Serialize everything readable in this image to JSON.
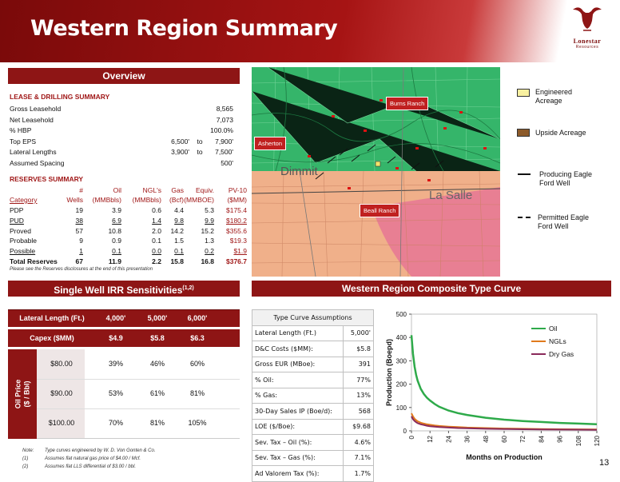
{
  "header": {
    "title": "Western Region Summary"
  },
  "logo": {
    "brand": "Lonestar",
    "sub": "Resources"
  },
  "page_number": "13",
  "overview": {
    "title": "Overview",
    "lease_heading": "LEASE & DRILLING SUMMARY",
    "lease_rows": [
      {
        "label": "Gross Leasehold",
        "v1": "",
        "to": "",
        "v2": "8,565"
      },
      {
        "label": "Net Leasehold",
        "v1": "",
        "to": "",
        "v2": "7,073"
      },
      {
        "label": "% HBP",
        "v1": "",
        "to": "",
        "v2": "100.0%"
      },
      {
        "label": "Top EPS",
        "v1": "6,500'",
        "to": "to",
        "v2": "7,900'"
      },
      {
        "label": "Lateral Lengths",
        "v1": "3,900'",
        "to": "to",
        "v2": "7,500'"
      },
      {
        "label": "Assumed Spacing",
        "v1": "",
        "to": "",
        "v2": "500'"
      }
    ],
    "reserves_heading": "RESERVES SUMMARY",
    "reserves_header_top": [
      "#",
      "Oil",
      "NGL's",
      "Gas",
      "Equiv.",
      "PV-10"
    ],
    "reserves_header_bottom": [
      "Category",
      "Wells",
      "(MMBbls)",
      "(MMBbls)",
      "(Bcf)",
      "(MMBOE)",
      "($MM)"
    ],
    "reserves_rows": [
      {
        "cat": "PDP",
        "wells": "19",
        "oil": "3.9",
        "ngl": "0.6",
        "gas": "4.4",
        "equiv": "5.3",
        "pv": "$175.4",
        "ul": false,
        "bold": false
      },
      {
        "cat": "PUD",
        "wells": "38",
        "oil": "6.9",
        "ngl": "1.4",
        "gas": "9.8",
        "equiv": "9.9",
        "pv": "$180.2",
        "ul": true,
        "bold": false
      },
      {
        "cat": "Proved",
        "wells": "57",
        "oil": "10.8",
        "ngl": "2.0",
        "gas": "14.2",
        "equiv": "15.2",
        "pv": "$355.6",
        "ul": false,
        "bold": false
      },
      {
        "cat": "Probable",
        "wells": "9",
        "oil": "0.9",
        "ngl": "0.1",
        "gas": "1.5",
        "equiv": "1.3",
        "pv": "$19.3",
        "ul": false,
        "bold": false
      },
      {
        "cat": "Possible",
        "wells": "1",
        "oil": "0.1",
        "ngl": "0.0",
        "gas": "0.1",
        "equiv": "0.2",
        "pv": "$1.9",
        "ul": true,
        "bold": false
      },
      {
        "cat": "Total Reserves",
        "wells": "67",
        "oil": "11.9",
        "ngl": "2.2",
        "gas": "15.8",
        "equiv": "16.8",
        "pv": "$376.7",
        "ul": false,
        "bold": true
      }
    ],
    "reserves_note": "Please see the Reserves disclosures at the end of this presentation"
  },
  "irr": {
    "title": "Single Well IRR Sensitivities",
    "title_sup": "(1,2)",
    "lateral_label": "Lateral Length (Ft.)",
    "laterals": [
      "4,000'",
      "5,000'",
      "6,000'"
    ],
    "capex_label": "Capex ($MM)",
    "capex": [
      "$4.9",
      "$5.8",
      "$6.3"
    ],
    "oil_price_label": "Oil Price",
    "oil_price_unit": "($ / Bbl)",
    "rows": [
      {
        "price": "$80.00",
        "vals": [
          "39%",
          "46%",
          "60%"
        ]
      },
      {
        "price": "$90.00",
        "vals": [
          "53%",
          "61%",
          "81%"
        ]
      },
      {
        "price": "$100.00",
        "vals": [
          "70%",
          "81%",
          "105%"
        ]
      }
    ],
    "notes": [
      {
        "tag": "Note:",
        "text": "Type curves engineered by W. D. Von Gonten & Co."
      },
      {
        "tag": "(1)",
        "text": "Assumes flat natural gas price of $4.00 / Mcf."
      },
      {
        "tag": "(2)",
        "text": "Assumes flat LLS differential of $3.00 / bbl."
      }
    ]
  },
  "map": {
    "labels": {
      "burns": "Burns Ranch",
      "asherton": "Asherton",
      "beall": "Beall Ranch",
      "dimmit": "Dimmit",
      "lasalle": "La Salle"
    },
    "legend": [
      {
        "key": "engineered",
        "text": "Engineered Acreage"
      },
      {
        "key": "upside",
        "text": "Upside Acreage"
      },
      {
        "key": "producing",
        "text": "Producing Eagle Ford Well"
      },
      {
        "key": "permitted",
        "text": "Permitted Eagle Ford Well"
      }
    ]
  },
  "type_curve": {
    "title": "Western Region Composite Type Curve",
    "table_title": "Type Curve Assumptions",
    "rows": [
      {
        "label": "Lateral Length (Ft.)",
        "value": "5,000'"
      },
      {
        "label": "D&C Costs ($MM):",
        "value": "$5.8"
      },
      {
        "label": "Gross EUR (MBoe):",
        "value": "391"
      },
      {
        "label": "% Oil:",
        "value": "77%"
      },
      {
        "label": "% Gas:",
        "value": "13%"
      },
      {
        "label": "30-Day Sales IP (Boe/d):",
        "value": "568"
      },
      {
        "label": "LOE ($/Boe):",
        "value": "$9.68"
      },
      {
        "label": "Sev. Tax – Oil (%):",
        "value": "4.6%"
      },
      {
        "label": "Sev. Tax – Gas (%):",
        "value": "7.1%"
      },
      {
        "label": "Ad Valorem Tax (%):",
        "value": "1.7%"
      }
    ]
  },
  "chart_data": {
    "type": "line",
    "xlabel": "Months on Production",
    "ylabel": "Production (Boepd)",
    "xlim": [
      0,
      120
    ],
    "ylim": [
      0,
      500
    ],
    "x_ticks": [
      0,
      12,
      24,
      36,
      48,
      60,
      72,
      84,
      96,
      108,
      120
    ],
    "y_ticks": [
      0,
      100,
      200,
      300,
      400,
      500
    ],
    "legend_position": "top-right",
    "x": [
      0,
      1,
      2,
      3,
      4,
      6,
      8,
      10,
      12,
      15,
      18,
      24,
      30,
      36,
      48,
      60,
      72,
      84,
      96,
      108,
      120
    ],
    "series": [
      {
        "name": "Oil",
        "color": "#2eaa4a",
        "values": [
          410,
          330,
          275,
          240,
          215,
          180,
          158,
          142,
          130,
          115,
          103,
          87,
          76,
          68,
          56,
          48,
          42,
          38,
          34,
          31,
          28
        ]
      },
      {
        "name": "NGLs",
        "color": "#e07a1c",
        "values": [
          75,
          62,
          52,
          46,
          41,
          35,
          31,
          28,
          26,
          23,
          21,
          18,
          16,
          14,
          12,
          10,
          9,
          8,
          7,
          6.5,
          6
        ]
      },
      {
        "name": "Dry Gas",
        "color": "#8a2a5a",
        "values": [
          62,
          50,
          42,
          37,
          33,
          28,
          25,
          22,
          20,
          18,
          16,
          14,
          12,
          11,
          9,
          8,
          7,
          6,
          5.5,
          5,
          4.5
        ]
      }
    ]
  }
}
